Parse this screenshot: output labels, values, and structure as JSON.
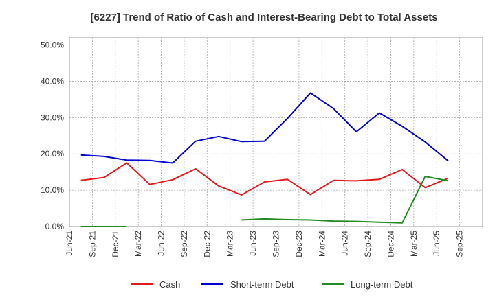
{
  "chart_data": {
    "type": "line",
    "title": "[6227]  Trend of Ratio of Cash and Interest-Bearing Debt to Total Assets",
    "categories": [
      "Jun-21",
      "Sep-21",
      "Dec-21",
      "Mar-22",
      "Jun-22",
      "Sep-22",
      "Dec-22",
      "Mar-23",
      "Jun-23",
      "Sep-23",
      "Dec-23",
      "Mar-24",
      "Jun-24",
      "Sep-24",
      "Dec-24",
      "Mar-25",
      "Jun-25",
      "Sep-25"
    ],
    "y_ticks": [
      "0.0%",
      "10.0%",
      "20.0%",
      "30.0%",
      "40.0%",
      "50.0%"
    ],
    "ylim": [
      0,
      52
    ],
    "grid": true,
    "legend_position": "bottom",
    "series": [
      {
        "name": "Cash",
        "color": "#e31a1c",
        "values": [
          12.7,
          13.5,
          17.5,
          11.6,
          12.9,
          15.9,
          11.2,
          8.7,
          12.3,
          13.0,
          8.8,
          12.7,
          12.6,
          13.0,
          15.7,
          10.7,
          13.3,
          null
        ]
      },
      {
        "name": "Short-term Debt",
        "color": "#0000cc",
        "values": [
          19.7,
          19.3,
          18.3,
          18.2,
          17.5,
          23.5,
          24.8,
          23.4,
          23.5,
          29.8,
          36.8,
          32.5,
          26.1,
          31.3,
          27.6,
          23.3,
          18.1,
          null
        ]
      },
      {
        "name": "Long-term Debt",
        "color": "#228b22",
        "values": [
          0.0,
          0.0,
          0.0,
          null,
          null,
          null,
          null,
          1.8,
          2.1,
          1.9,
          1.8,
          1.5,
          1.4,
          1.2,
          1.0,
          13.8,
          12.6,
          null
        ]
      }
    ]
  }
}
